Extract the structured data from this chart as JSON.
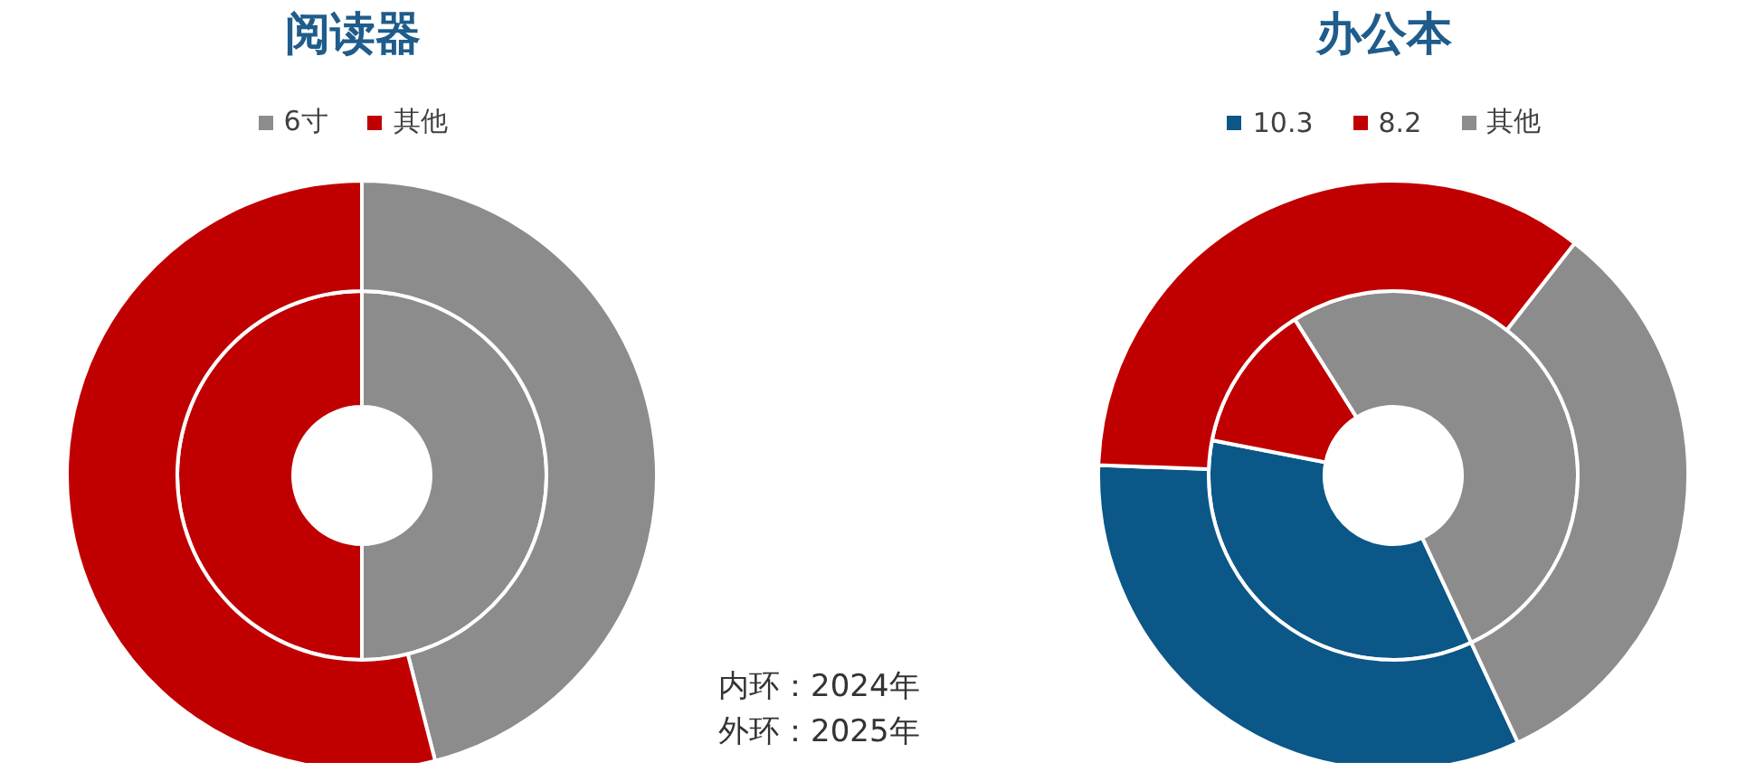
{
  "chart_data": [
    {
      "type": "donut",
      "title": "阅读器",
      "categories": [
        "6寸",
        "其他"
      ],
      "colors": [
        "#8c8c8c",
        "#c00000"
      ],
      "legend": "top",
      "series": [
        {
          "values": [
            50,
            50
          ]
        },
        {
          "values": [
            46,
            54
          ]
        }
      ],
      "annotations": [
        "内环：2024年",
        "外环：2025年"
      ]
    },
    {
      "type": "donut",
      "title": "办公本",
      "categories": [
        "10.3",
        "8.2",
        "其他"
      ],
      "colors": [
        "#0b5788",
        "#c00000",
        "#8c8c8c"
      ],
      "legend": "top",
      "series": [
        {
          "values": [
            35,
            13,
            52
          ]
        },
        {
          "values": [
            32.5,
            35,
            32.5
          ]
        }
      ]
    }
  ]
}
